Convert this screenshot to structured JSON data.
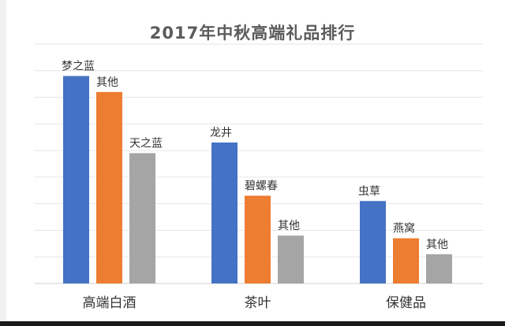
{
  "chart_data": {
    "type": "bar",
    "title": "2017年中秋高端礼品排行",
    "categories": [
      "高端白酒",
      "茶叶",
      "保健品"
    ],
    "groups": [
      {
        "category": "高端白酒",
        "bars": [
          {
            "label": "梦之蓝",
            "value": 7.8,
            "color": "#4472c4"
          },
          {
            "label": "其他",
            "value": 7.2,
            "color": "#ed7d31"
          },
          {
            "label": "天之蓝",
            "value": 4.9,
            "color": "#a5a5a5"
          }
        ]
      },
      {
        "category": "茶叶",
        "bars": [
          {
            "label": "龙井",
            "value": 5.3,
            "color": "#4472c4"
          },
          {
            "label": "碧螺春",
            "value": 3.3,
            "color": "#ed7d31"
          },
          {
            "label": "其他",
            "value": 1.8,
            "color": "#a5a5a5"
          }
        ]
      },
      {
        "category": "保健品",
        "bars": [
          {
            "label": "虫草",
            "value": 3.1,
            "color": "#4472c4"
          },
          {
            "label": "燕窝",
            "value": 1.7,
            "color": "#ed7d31"
          },
          {
            "label": "其他",
            "value": 1.1,
            "color": "#a5a5a5"
          }
        ]
      }
    ],
    "ylim": [
      0,
      9
    ],
    "grid": true,
    "legend": false
  }
}
